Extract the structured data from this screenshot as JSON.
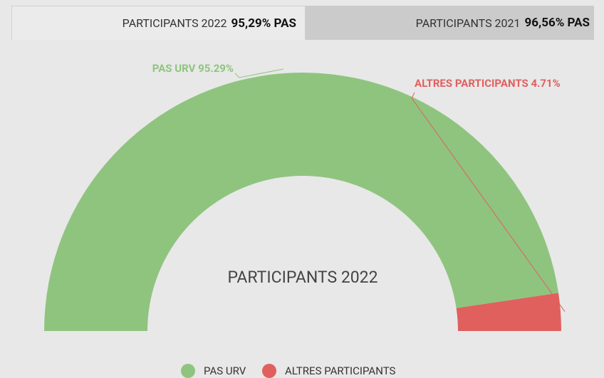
{
  "tabs": [
    {
      "label": "PARTICIPANTS 2022",
      "value": "95,29% PAS"
    },
    {
      "label": "PARTICIPANTS 2021",
      "value": "96,56% PAS"
    }
  ],
  "chart_data": {
    "type": "pie",
    "title": "PARTICIPANTS 2022",
    "categories": [
      "PAS URV",
      "ALTRES PARTICIPANTS"
    ],
    "values": [
      95.29,
      4.71
    ],
    "value_labels": [
      "PAS URV 95.29%",
      "ALTRES PARTICIPANTS 4.71%"
    ],
    "colors": [
      "#8fc47f",
      "#e0605e"
    ],
    "legend": "bottom"
  }
}
